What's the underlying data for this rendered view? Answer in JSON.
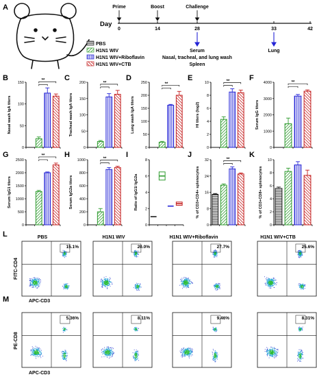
{
  "panel_letters": [
    "A",
    "B",
    "C",
    "D",
    "E",
    "F",
    "G",
    "H",
    "I",
    "J",
    "K",
    "L",
    "M"
  ],
  "timeline": {
    "day_label": "Day",
    "ticks": [
      "0",
      "14",
      "28",
      "33",
      "42"
    ],
    "events": [
      "Prime",
      "Boost",
      "Challenge"
    ],
    "serum_label": "Serum",
    "sample_label": "Nasal, tracheal, and lung wash",
    "spleen_label": "Spleen",
    "lung_label": "Lung"
  },
  "legend": [
    "PBS",
    "H1N1 WIV",
    "H1N1 WIV+Riboflavin",
    "H1N1 WIV+CTB"
  ],
  "colors": {
    "PBS": "#1a1a1a",
    "H1N1 WIV": "#2e9b2e",
    "H1N1 WIV+Riboflavin": "#2424d6",
    "H1N1 WIV+CTB": "#c41e1e"
  },
  "significance": "**",
  "chart_data": [
    {
      "id": "B",
      "type": "bar",
      "ylabel": "Nasal wash IgA titers",
      "ylim": [
        0,
        150
      ],
      "yticks": [
        "0",
        "50",
        "100",
        "150"
      ],
      "categories": [
        "PBS",
        "H1N1 WIV",
        "H1N1 WIV+Riboflavin",
        "H1N1 WIV+CTB"
      ],
      "values": [
        0,
        20,
        125,
        118
      ],
      "errors": [
        0,
        4,
        12,
        5
      ]
    },
    {
      "id": "C",
      "type": "bar",
      "ylabel": "Tracheal wash IgA titers",
      "ylim": [
        0,
        200
      ],
      "yticks": [
        "0",
        "50",
        "100",
        "150",
        "200"
      ],
      "categories": [
        "PBS",
        "H1N1 WIV",
        "H1N1 WIV+Riboflavin",
        "H1N1 WIV+CTB"
      ],
      "values": [
        0,
        18,
        155,
        163
      ],
      "errors": [
        0,
        3,
        10,
        12
      ]
    },
    {
      "id": "D",
      "type": "bar",
      "ylabel": "Lung wash IgA titers",
      "ylim": [
        0,
        250
      ],
      "yticks": [
        "0",
        "50",
        "100",
        "150",
        "200",
        "250"
      ],
      "categories": [
        "PBS",
        "H1N1 WIV",
        "H1N1 WIV+Riboflavin",
        "H1N1 WIV+CTB"
      ],
      "values": [
        0,
        20,
        162,
        200
      ],
      "errors": [
        0,
        3,
        3,
        15
      ]
    },
    {
      "id": "E",
      "type": "bar",
      "ylabel": "HI titers (log2)",
      "ylim": [
        0,
        10
      ],
      "yticks": [
        "0",
        "2",
        "4",
        "6",
        "8",
        "10"
      ],
      "categories": [
        "PBS",
        "H1N1 WIV",
        "H1N1 WIV+Riboflavin",
        "H1N1 WIV+CTB"
      ],
      "values": [
        0,
        4.3,
        8.5,
        8.4
      ],
      "errors": [
        0,
        0.4,
        0.5,
        0.4
      ]
    },
    {
      "id": "F",
      "type": "bar",
      "ylabel": "Serum IgG titers",
      "ylim": [
        0,
        4000
      ],
      "yticks": [
        "0",
        "1000",
        "2000",
        "3000",
        "4000"
      ],
      "categories": [
        "PBS",
        "H1N1 WIV",
        "H1N1 WIV+Riboflavin",
        "H1N1 WIV+CTB"
      ],
      "values": [
        0,
        1450,
        3150,
        3450
      ],
      "errors": [
        0,
        350,
        100,
        80
      ]
    },
    {
      "id": "G",
      "type": "bar",
      "ylabel": "Serum IgG1 titers",
      "ylim": [
        0,
        2500
      ],
      "yticks": [
        "0",
        "500",
        "1000",
        "1500",
        "2000",
        "2500"
      ],
      "categories": [
        "PBS",
        "H1N1 WIV",
        "H1N1 WIV+Riboflavin",
        "H1N1 WIV+CTB"
      ],
      "values": [
        0,
        1280,
        2000,
        2300
      ],
      "errors": [
        0,
        40,
        30,
        70
      ]
    },
    {
      "id": "H",
      "type": "bar",
      "ylabel": "Serum IgG2a titers",
      "ylim": [
        0,
        1000
      ],
      "yticks": [
        "0",
        "200",
        "400",
        "600",
        "800",
        "1000"
      ],
      "categories": [
        "PBS",
        "H1N1 WIV",
        "H1N1 WIV+Riboflavin",
        "H1N1 WIV+CTB"
      ],
      "values": [
        0,
        200,
        850,
        880
      ],
      "errors": [
        0,
        50,
        30,
        20
      ]
    },
    {
      "id": "I",
      "type": "scatter",
      "ylabel": "Ratio of IgG1/ IgG2a",
      "ylim": [
        0,
        8
      ],
      "yticks": [
        "0",
        "2",
        "4",
        "6",
        "8"
      ],
      "categories": [
        "PBS",
        "H1N1 WIV",
        "H1N1 WIV+Riboflavin",
        "H1N1 WIV+CTB"
      ],
      "values": [
        1.0,
        6.0,
        2.3,
        2.6
      ],
      "errors": [
        0,
        0.5,
        0,
        0.2
      ]
    },
    {
      "id": "J",
      "type": "bar",
      "ylabel": "% of CD3+CD4+ splenocytes",
      "ylim": [
        0,
        32
      ],
      "yticks": [
        "0",
        "8",
        "16",
        "24",
        "32"
      ],
      "categories": [
        "PBS",
        "H1N1 WIV",
        "H1N1 WIV+Riboflavin",
        "H1N1 WIV+CTB"
      ],
      "values": [
        15,
        19.5,
        27.5,
        25
      ],
      "errors": [
        0.4,
        0.6,
        1,
        0.5
      ]
    },
    {
      "id": "K",
      "type": "bar",
      "ylabel": "% of CD3+CD8+ splenocytes",
      "ylim": [
        0,
        10
      ],
      "yticks": [
        "0",
        "2",
        "4",
        "6",
        "8",
        "10"
      ],
      "categories": [
        "PBS",
        "H1N1 WIV",
        "H1N1 WIV+Riboflavin",
        "H1N1 WIV+CTB"
      ],
      "values": [
        5.6,
        8.2,
        9.2,
        7.6
      ],
      "errors": [
        0.2,
        0.5,
        0.5,
        0.8
      ]
    }
  ],
  "flow": {
    "groups": [
      "PBS",
      "H1N1 WIV",
      "H1N1 WIV+Riboflavin",
      "H1N1 WIV+CTB"
    ],
    "L": {
      "percents": [
        "15.1%",
        "20.0%",
        "27.7%",
        "25.6%"
      ],
      "ylabel": "FITC-CD4",
      "xlabel": "APC-CD3"
    },
    "M": {
      "percents": [
        "5.36%",
        "8.11%",
        "9.46%",
        "8.31%"
      ],
      "ylabel": "PE-CD8",
      "xlabel": "APC-CD3"
    }
  }
}
